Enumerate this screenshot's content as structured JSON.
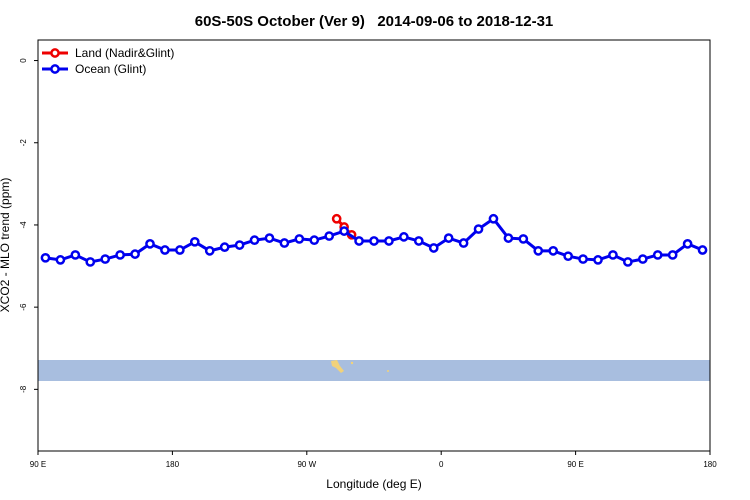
{
  "chart_data": {
    "type": "line",
    "title": "60S-50S October (Ver 9)   2014-09-06 to 2018-12-31",
    "x_label": "Longitude (deg E)",
    "y_label": "XCO2 - MLO trend (ppm)",
    "xlim": [
      90,
      540
    ],
    "xticks": [
      {
        "value": 90,
        "label": "90 E"
      },
      {
        "value": 180,
        "label": "180"
      },
      {
        "value": 270,
        "label": "90 W"
      },
      {
        "value": 360,
        "label": "0"
      },
      {
        "value": 450,
        "label": "90 E"
      },
      {
        "value": 540,
        "label": "180"
      }
    ],
    "ylim": [
      -9.5,
      0.5
    ],
    "yticks": [
      0,
      -2,
      -4,
      -6,
      -8
    ],
    "legend": "top-left",
    "series": [
      {
        "name": "Land (Nadir&Glint)",
        "color": "#ee0000",
        "x": [
          290,
          295,
          300
        ],
        "values": [
          -3.85,
          -4.05,
          -4.24
        ]
      },
      {
        "name": "Ocean (Glint)",
        "color": "#0000ee",
        "x": [
          95,
          105,
          115,
          125,
          135,
          145,
          155,
          165,
          175,
          185,
          195,
          205,
          215,
          225,
          235,
          245,
          255,
          265,
          275,
          285,
          295,
          305,
          315,
          325,
          335,
          345,
          355,
          365,
          375,
          385,
          395,
          405,
          415,
          425,
          435,
          445,
          455,
          465,
          475,
          485,
          495,
          505,
          515,
          525,
          535
        ],
        "values": [
          -4.8,
          -4.85,
          -4.73,
          -4.9,
          -4.83,
          -4.73,
          -4.71,
          -4.46,
          -4.61,
          -4.61,
          -4.41,
          -4.63,
          -4.54,
          -4.49,
          -4.37,
          -4.32,
          -4.44,
          -4.34,
          -4.37,
          -4.27,
          -4.15,
          -4.39,
          -4.39,
          -4.39,
          -4.29,
          -4.39,
          -4.56,
          -4.32,
          -4.44,
          -4.1,
          -3.85,
          -4.32,
          -4.34,
          -4.63,
          -4.63,
          -4.76,
          -4.83,
          -4.85,
          -4.73,
          -4.9,
          -4.83,
          -4.73,
          -4.73,
          -4.46,
          -4.61
        ]
      }
    ]
  }
}
